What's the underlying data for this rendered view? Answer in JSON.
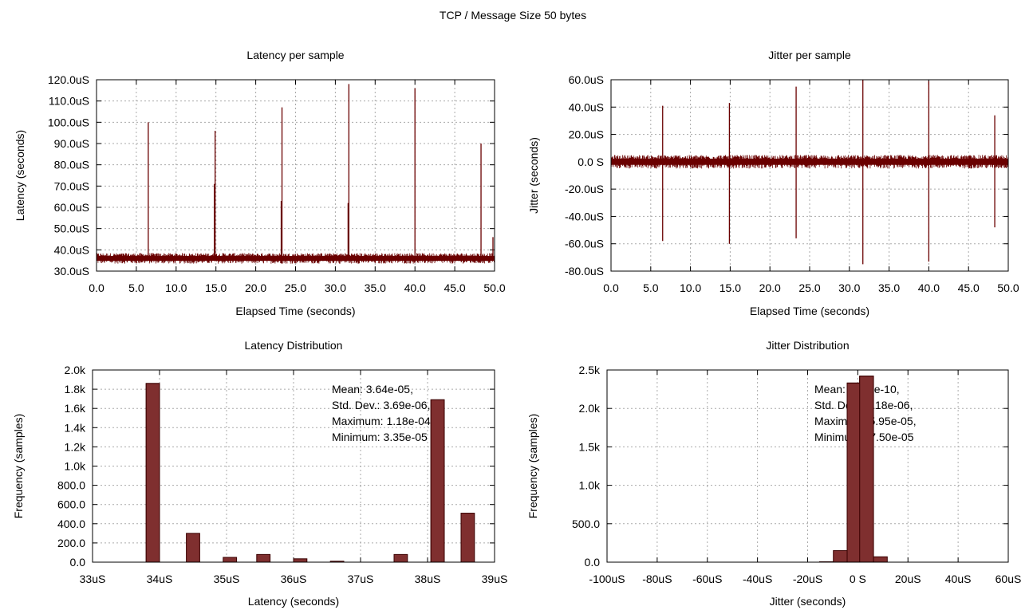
{
  "figure": {
    "title": "TCP / Message Size 50 bytes"
  },
  "colors": {
    "trace": "#6a0000",
    "bar_fill": "#7f2f2f",
    "bar_stroke": "#3a0000",
    "grid": "#aaaaaa"
  },
  "chart_data": [
    {
      "id": "latency_per_sample",
      "type": "line",
      "title": "Latency per sample",
      "xlabel": "Elapsed Time (seconds)",
      "ylabel": "Latency (seconds)",
      "xlim": [
        0,
        50
      ],
      "ylim": [
        30,
        120
      ],
      "xticks": [
        "0.0",
        "5.0",
        "10.0",
        "15.0",
        "20.0",
        "25.0",
        "30.0",
        "35.0",
        "40.0",
        "45.0",
        "50.0"
      ],
      "yticks": [
        "30.0uS",
        "40.0uS",
        "50.0uS",
        "60.0uS",
        "70.0uS",
        "80.0uS",
        "90.0uS",
        "100.0uS",
        "110.0uS",
        "120.0uS"
      ],
      "grid": true,
      "series": [
        {
          "baseline": 36,
          "band": [
            33.5,
            38.5
          ],
          "spikes": [
            {
              "x": 6.5,
              "y": 100
            },
            {
              "x": 14.9,
              "y": 96
            },
            {
              "x": 14.8,
              "y": 71
            },
            {
              "x": 23.3,
              "y": 107
            },
            {
              "x": 23.2,
              "y": 63
            },
            {
              "x": 31.7,
              "y": 118
            },
            {
              "x": 31.6,
              "y": 62
            },
            {
              "x": 40.0,
              "y": 116
            },
            {
              "x": 48.3,
              "y": 90
            },
            {
              "x": 49.8,
              "y": 46
            }
          ]
        }
      ]
    },
    {
      "id": "jitter_per_sample",
      "type": "line",
      "title": "Jitter per sample",
      "xlabel": "Elapsed Time (seconds)",
      "ylabel": "Jitter (seconds)",
      "xlim": [
        0,
        50
      ],
      "ylim": [
        -80,
        60
      ],
      "xticks": [
        "0.0",
        "5.0",
        "10.0",
        "15.0",
        "20.0",
        "25.0",
        "30.0",
        "35.0",
        "40.0",
        "45.0",
        "50.0"
      ],
      "yticks": [
        "-80.0uS",
        "-60.0uS",
        "-40.0uS",
        "-20.0uS",
        "0.0 S",
        "20.0uS",
        "40.0uS",
        "60.0uS"
      ],
      "grid": true,
      "series": [
        {
          "baseline": 0,
          "band": [
            -5,
            5
          ],
          "spikes": [
            {
              "x": 6.5,
              "y": 41,
              "low": -58
            },
            {
              "x": 14.9,
              "y": 43,
              "low": -60
            },
            {
              "x": 23.3,
              "y": 55,
              "low": -56
            },
            {
              "x": 31.7,
              "y": 60,
              "low": -75
            },
            {
              "x": 40.0,
              "y": 59,
              "low": -73
            },
            {
              "x": 48.3,
              "y": 34,
              "low": -48
            }
          ]
        }
      ]
    },
    {
      "id": "latency_distribution",
      "type": "bar",
      "title": "Latency Distribution",
      "xlabel": "Latency (seconds)",
      "ylabel": "Frequency (samples)",
      "xlim": [
        33,
        39
      ],
      "ylim": [
        0,
        2000
      ],
      "xticks": [
        "33uS",
        "34uS",
        "35uS",
        "36uS",
        "37uS",
        "38uS",
        "39uS"
      ],
      "yticks": [
        "0.0",
        "200.0",
        "400.0",
        "600.0",
        "800.0",
        "1.0k",
        "1.2k",
        "1.4k",
        "1.6k",
        "1.8k",
        "2.0k"
      ],
      "grid": true,
      "bar_width": 0.2,
      "x": [
        33.9,
        34.5,
        35.05,
        35.55,
        36.1,
        36.65,
        37.6,
        38.15,
        38.6
      ],
      "values": [
        1860,
        300,
        50,
        80,
        35,
        10,
        80,
        1690,
        510
      ],
      "annotations": [
        "Mean: 3.64e-05,",
        "Std. Dev.: 3.69e-06,",
        "Maximum: 1.18e-04,",
        "Minimum: 3.35e-05"
      ],
      "annotation_clip_x": 38.15
    },
    {
      "id": "jitter_distribution",
      "type": "bar",
      "title": "Jitter Distribution",
      "xlabel": "Jitter (seconds)",
      "ylabel": "Frequency (samples)",
      "xlim": [
        -100,
        60
      ],
      "ylim": [
        0,
        2500
      ],
      "xticks": [
        "-100uS",
        "-80uS",
        "-60uS",
        "-40uS",
        "-20uS",
        "0 S",
        "20uS",
        "40uS",
        "60uS"
      ],
      "yticks": [
        "0.0",
        "500.0",
        "1.0k",
        "1.5k",
        "2.0k",
        "2.5k"
      ],
      "grid": true,
      "bar_width": 5.5,
      "x": [
        -12.5,
        -7,
        -1.5,
        3.5,
        9
      ],
      "values": [
        5,
        150,
        2330,
        2420,
        70
      ],
      "annotations": [
        "Mean: -8.00e-10,",
        "Std. Dev.: 5.18e-06,",
        "Maximum: 5.95e-05,",
        "Minimum: -7.50e-05"
      ],
      "annotation_clip_x": 6.5
    }
  ]
}
